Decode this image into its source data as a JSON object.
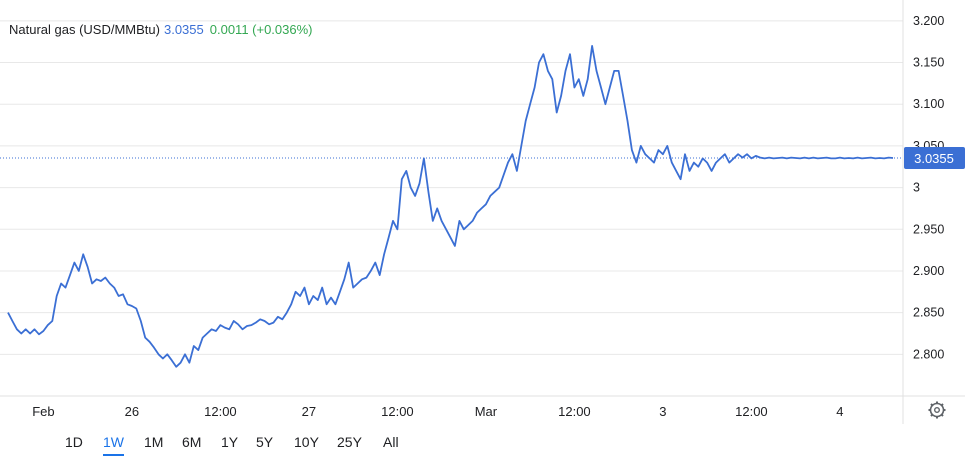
{
  "header": {
    "title": "Natural gas (USD/MMBtu)",
    "price": "3.0355",
    "change": "0.0011 (+0.036%)"
  },
  "current_price_label": "3.0355",
  "ranges": [
    "1D",
    "1W",
    "1M",
    "6M",
    "1Y",
    "5Y",
    "10Y",
    "25Y",
    "All"
  ],
  "active_range": "1W",
  "colors": {
    "line": "#3b6fd4",
    "grid": "#e8e8e8",
    "price_tag": "#3b6fd4",
    "change": "#34a853"
  },
  "chart_data": {
    "type": "line",
    "title": "Natural gas (USD/MMBtu)",
    "ylim": [
      2.75,
      3.225
    ],
    "y_ticks": [
      {
        "v": 3.2,
        "label": "3.200"
      },
      {
        "v": 3.15,
        "label": "3.150"
      },
      {
        "v": 3.1,
        "label": "3.100"
      },
      {
        "v": 3.05,
        "label": "3.050"
      },
      {
        "v": 3.0,
        "label": "3"
      },
      {
        "v": 2.95,
        "label": "2.950"
      },
      {
        "v": 2.9,
        "label": "2.900"
      },
      {
        "v": 2.85,
        "label": "2.850"
      },
      {
        "v": 2.8,
        "label": "2.800"
      }
    ],
    "x_ticks": [
      {
        "t": 0.04,
        "label": "Feb"
      },
      {
        "t": 0.14,
        "label": "26"
      },
      {
        "t": 0.24,
        "label": "12:00"
      },
      {
        "t": 0.34,
        "label": "27"
      },
      {
        "t": 0.44,
        "label": "12:00"
      },
      {
        "t": 0.54,
        "label": "Mar"
      },
      {
        "t": 0.64,
        "label": "12:00"
      },
      {
        "t": 0.74,
        "label": "3"
      },
      {
        "t": 0.84,
        "label": "12:00"
      },
      {
        "t": 0.94,
        "label": "4"
      }
    ],
    "current_value": 3.0355,
    "series": [
      {
        "x": [
          0.0,
          0.005,
          0.01,
          0.015,
          0.02,
          0.025,
          0.03,
          0.035,
          0.04,
          0.045,
          0.05,
          0.055,
          0.06,
          0.065,
          0.07,
          0.075,
          0.08,
          0.085,
          0.09,
          0.095,
          0.1,
          0.105,
          0.11,
          0.115,
          0.12,
          0.125,
          0.13,
          0.135,
          0.14,
          0.145,
          0.15,
          0.155,
          0.16,
          0.165,
          0.17,
          0.175,
          0.18,
          0.185,
          0.19,
          0.195,
          0.2,
          0.205,
          0.21,
          0.215,
          0.22,
          0.225,
          0.23,
          0.235,
          0.24,
          0.245,
          0.25,
          0.255,
          0.26,
          0.265,
          0.27,
          0.275,
          0.28,
          0.285,
          0.29,
          0.295,
          0.3,
          0.305,
          0.31,
          0.315,
          0.32,
          0.325,
          0.33,
          0.335,
          0.34,
          0.345,
          0.35,
          0.355,
          0.36,
          0.365,
          0.37,
          0.375,
          0.38,
          0.385,
          0.39,
          0.395,
          0.4,
          0.405,
          0.41,
          0.415,
          0.42,
          0.425,
          0.43,
          0.435,
          0.44,
          0.445,
          0.45,
          0.455,
          0.46,
          0.465,
          0.47,
          0.475,
          0.48,
          0.485,
          0.49,
          0.495,
          0.5,
          0.505,
          0.51,
          0.515,
          0.52,
          0.525,
          0.53,
          0.535,
          0.54,
          0.545,
          0.55,
          0.555,
          0.56,
          0.565,
          0.57,
          0.575,
          0.58,
          0.585,
          0.59,
          0.595,
          0.6,
          0.605,
          0.61,
          0.615,
          0.62,
          0.625,
          0.63,
          0.635,
          0.64,
          0.645,
          0.65,
          0.655,
          0.66,
          0.665,
          0.67,
          0.675,
          0.68,
          0.685,
          0.69,
          0.695,
          0.7,
          0.705,
          0.71,
          0.715,
          0.72,
          0.725,
          0.73,
          0.735,
          0.74,
          0.745,
          0.75,
          0.755,
          0.76,
          0.765,
          0.77,
          0.775,
          0.78,
          0.785,
          0.79,
          0.795,
          0.8,
          0.805,
          0.81,
          0.815,
          0.82,
          0.825,
          0.83,
          0.835,
          0.84,
          0.845,
          0.85,
          0.855,
          0.86,
          0.865,
          0.87,
          0.875,
          0.88,
          0.885,
          0.89,
          0.895,
          0.9,
          0.905,
          0.91,
          0.915,
          0.92,
          0.925,
          0.93,
          0.935,
          0.94,
          0.945,
          0.95,
          0.955,
          0.96,
          0.965,
          0.97,
          0.975,
          0.98,
          0.985,
          0.99,
          0.995,
          1.0
        ],
        "y": [
          2.85,
          2.84,
          2.83,
          2.825,
          2.83,
          2.825,
          2.83,
          2.824,
          2.828,
          2.835,
          2.84,
          2.87,
          2.885,
          2.88,
          2.895,
          2.91,
          2.9,
          2.92,
          2.905,
          2.885,
          2.89,
          2.888,
          2.892,
          2.885,
          2.88,
          2.87,
          2.872,
          2.86,
          2.858,
          2.855,
          2.84,
          2.82,
          2.815,
          2.808,
          2.8,
          2.795,
          2.8,
          2.793,
          2.785,
          2.79,
          2.8,
          2.79,
          2.81,
          2.805,
          2.82,
          2.825,
          2.83,
          2.828,
          2.835,
          2.832,
          2.83,
          2.84,
          2.836,
          2.83,
          2.834,
          2.835,
          2.838,
          2.842,
          2.84,
          2.836,
          2.838,
          2.845,
          2.842,
          2.85,
          2.86,
          2.875,
          2.87,
          2.88,
          2.86,
          2.87,
          2.865,
          2.88,
          2.86,
          2.868,
          2.86,
          2.875,
          2.89,
          2.91,
          2.88,
          2.885,
          2.89,
          2.892,
          2.9,
          2.91,
          2.895,
          2.92,
          2.94,
          2.96,
          2.95,
          3.01,
          3.02,
          3.0,
          2.99,
          3.005,
          3.035,
          2.995,
          2.96,
          2.975,
          2.96,
          2.95,
          2.94,
          2.93,
          2.96,
          2.95,
          2.955,
          2.96,
          2.97,
          2.975,
          2.98,
          2.99,
          2.995,
          3.0,
          3.015,
          3.03,
          3.04,
          3.02,
          3.05,
          3.08,
          3.1,
          3.12,
          3.15,
          3.16,
          3.14,
          3.13,
          3.09,
          3.11,
          3.14,
          3.16,
          3.12,
          3.13,
          3.11,
          3.13,
          3.17,
          3.14,
          3.12,
          3.1,
          3.12,
          3.14,
          3.14,
          3.11,
          3.08,
          3.045,
          3.03,
          3.05,
          3.04,
          3.035,
          3.03,
          3.045,
          3.04,
          3.05,
          3.03,
          3.02,
          3.01,
          3.04,
          3.02,
          3.03,
          3.025,
          3.035,
          3.03,
          3.02,
          3.03,
          3.035,
          3.04,
          3.03,
          3.035,
          3.04,
          3.036,
          3.04,
          3.035,
          3.038,
          3.036,
          3.035,
          3.036,
          3.035,
          3.0355,
          3.036,
          3.035,
          3.036,
          3.0355,
          3.035,
          3.036,
          3.035,
          3.036,
          3.035,
          3.0355,
          3.036,
          3.035,
          3.035,
          3.036,
          3.035,
          3.0355,
          3.035,
          3.036,
          3.035,
          3.0355,
          3.036,
          3.035,
          3.0355,
          3.035,
          3.036,
          3.0355
        ]
      }
    ]
  }
}
